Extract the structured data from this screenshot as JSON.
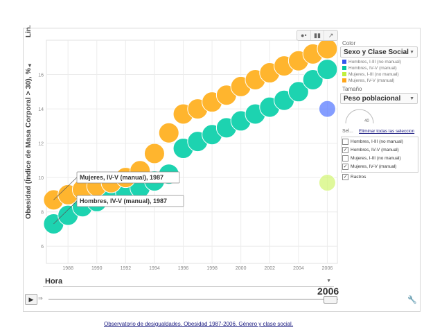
{
  "chart_data": {
    "type": "scatter",
    "ylabel": "Obesidad (Índice de Masa Corporal > 30), %",
    "y_scale_label": "Lin.",
    "xticks": [
      "1988",
      "1990",
      "1992",
      "1994",
      "1996",
      "1998",
      "2000",
      "2002",
      "2004",
      "2006"
    ],
    "yticks": [
      "6",
      "8",
      "10",
      "12",
      "14",
      "16"
    ],
    "ylim": [
      5,
      18
    ],
    "xlim": [
      1986.5,
      2006.7
    ],
    "grid": true,
    "series": [
      {
        "name": "Hombres, IV-V (manual)",
        "color": "#1dd3b0",
        "x": [
          1987,
          1988,
          1989,
          1990,
          1991,
          1992,
          1993,
          1994,
          1995,
          1996,
          1997,
          1998,
          1999,
          2000,
          2001,
          2002,
          2003,
          2004,
          2005,
          2006
        ],
        "y": [
          7.3,
          7.8,
          8.3,
          8.6,
          8.9,
          9.1,
          9.4,
          9.8,
          10.2,
          11.7,
          12.1,
          12.5,
          12.9,
          13.3,
          13.7,
          14.1,
          14.5,
          15.0,
          15.7,
          16.3
        ]
      },
      {
        "name": "Mujeres, IV-V (manual)",
        "color": "#ffb52e",
        "x": [
          1987,
          1988,
          1989,
          1990,
          1991,
          1992,
          1993,
          1994,
          1995,
          1996,
          1997,
          1998,
          1999,
          2000,
          2001,
          2002,
          2003,
          2004,
          2005,
          2006
        ],
        "y": [
          8.7,
          9.0,
          9.3,
          9.5,
          9.7,
          10.0,
          10.4,
          11.4,
          12.6,
          13.7,
          14.0,
          14.4,
          14.8,
          15.3,
          15.7,
          16.1,
          16.5,
          16.8,
          17.2,
          17.5
        ]
      },
      {
        "name": "Hombres, I-III (no manual)",
        "color": "#5b7cff",
        "x": [
          2006
        ],
        "y": [
          14.0
        ]
      },
      {
        "name": "Mujeres, I-III (no manual)",
        "color": "#d4f57a",
        "x": [
          2006
        ],
        "y": [
          9.7
        ]
      }
    ],
    "annotations": [
      {
        "text": "Mujeres, IV-V (manual), 1987"
      },
      {
        "text": "Hombres, IV-V (manual), 1987"
      }
    ]
  },
  "controls": {
    "color_label": "Color",
    "color_value": "Sexo y Clase Social",
    "legend": [
      {
        "label": "Hombres, I-III (no manual)",
        "color": "#3355ee"
      },
      {
        "label": "Hombres, IV-V (manual)",
        "color": "#00c4a0"
      },
      {
        "label": "Mujeres, I-III (no manual)",
        "color": "#c0ef3c"
      },
      {
        "label": "Mujeres, IV-V (manual)",
        "color": "#ffa51a"
      }
    ],
    "size_label": "Tamaño",
    "size_value": "Peso poblacional",
    "size_gauge_value": "40",
    "select_label": "Sel...",
    "deselect_all": "Eliminar todas las seleccion",
    "select_items": [
      {
        "label": "Hombres, I-III (no manual)",
        "checked": false
      },
      {
        "label": "Hombres, IV-V (manual)",
        "checked": true
      },
      {
        "label": "Mujeres, I-III (no manual)",
        "checked": false
      },
      {
        "label": "Mujeres, IV-V (manual)",
        "checked": true
      }
    ],
    "trails_label": "Rastros",
    "trails_checked": true,
    "time_dim": "Hora",
    "current_year": "2006"
  },
  "caption": "Observatorio de desigualdades. Obesidad 1987-2006. Género y clase social."
}
